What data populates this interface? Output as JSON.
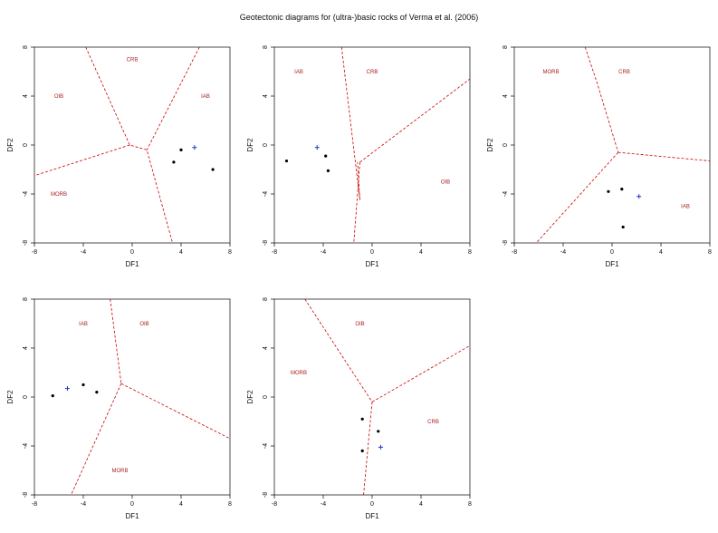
{
  "title": "Geotectonic diagrams for (ultra-)basic rocks of Verma et al. (2006)",
  "colors": {
    "boundary": "#cc0000",
    "label": "#aa2222",
    "sample": "#000000",
    "mean": "#2233cc",
    "axis": "#000000"
  },
  "chart_data": [
    {
      "type": "scatter",
      "xlabel": "DF1",
      "ylabel": "DF2",
      "xlim": [
        -8,
        8
      ],
      "ylim": [
        -8,
        8
      ],
      "xticks": [
        "-8",
        "-4",
        "0",
        "4",
        "8"
      ],
      "yticks": [
        "-8",
        "-4",
        "0",
        "4",
        "8"
      ],
      "fields": [
        {
          "name": "CRB",
          "x": 0,
          "y": 7
        },
        {
          "name": "OIB",
          "x": -6,
          "y": 4
        },
        {
          "name": "IAB",
          "x": 6,
          "y": 4
        },
        {
          "name": "MORB",
          "x": -6,
          "y": -4
        }
      ],
      "boundaries": [
        [
          [
            -3.8,
            8
          ],
          [
            -0.2,
            0
          ],
          [
            1.2,
            -0.4
          ],
          [
            3.3,
            -8
          ]
        ],
        [
          [
            5.5,
            8
          ],
          [
            1.2,
            -0.4
          ]
        ],
        [
          [
            -0.2,
            0
          ],
          [
            -8,
            -2.5
          ]
        ]
      ],
      "samples": [
        [
          4,
          -0.4
        ],
        [
          3.4,
          -1.4
        ],
        [
          6.6,
          -2
        ]
      ],
      "mean": [
        [
          5.1,
          -0.2
        ]
      ]
    },
    {
      "type": "scatter",
      "xlabel": "DF1",
      "ylabel": "DF2",
      "xlim": [
        -8,
        8
      ],
      "ylim": [
        -8,
        8
      ],
      "xticks": [
        "-8",
        "-4",
        "0",
        "4",
        "8"
      ],
      "yticks": [
        "-8",
        "-4",
        "0",
        "4",
        "8"
      ],
      "fields": [
        {
          "name": "IAB",
          "x": -6,
          "y": 6
        },
        {
          "name": "CRB",
          "x": 0,
          "y": 6
        },
        {
          "name": "OIB",
          "x": 6,
          "y": -3
        }
      ],
      "boundaries": [
        [
          [
            -2.5,
            8
          ],
          [
            -1,
            -4.5
          ],
          [
            -1.2,
            -1.4
          ]
        ],
        [
          [
            -1,
            -1.4
          ],
          [
            8,
            5.4
          ]
        ],
        [
          [
            -1,
            -1.4
          ],
          [
            -1.5,
            -8
          ]
        ]
      ],
      "samples": [
        [
          -7,
          -1.3
        ],
        [
          -3.8,
          -0.9
        ],
        [
          -3.6,
          -2.1
        ]
      ],
      "mean": [
        [
          -4.5,
          -0.2
        ]
      ]
    },
    {
      "type": "scatter",
      "xlabel": "DF1",
      "ylabel": "DF2",
      "xlim": [
        -8,
        8
      ],
      "ylim": [
        -8,
        8
      ],
      "xticks": [
        "-8",
        "-4",
        "0",
        "4",
        "8"
      ],
      "yticks": [
        "-8",
        "-4",
        "0",
        "4",
        "8"
      ],
      "fields": [
        {
          "name": "MORB",
          "x": -5,
          "y": 6
        },
        {
          "name": "CRB",
          "x": 1,
          "y": 6
        },
        {
          "name": "IAB",
          "x": 6,
          "y": -5
        }
      ],
      "boundaries": [
        [
          [
            -2.2,
            8
          ],
          [
            -1.2,
            5
          ],
          [
            0.5,
            -0.6
          ]
        ],
        [
          [
            0.5,
            -0.6
          ],
          [
            8,
            -1.3
          ]
        ],
        [
          [
            0.5,
            -0.6
          ],
          [
            -6.2,
            -8
          ]
        ]
      ],
      "samples": [
        [
          -0.3,
          -3.8
        ],
        [
          0.8,
          -3.6
        ],
        [
          0.9,
          -6.7
        ]
      ],
      "mean": [
        [
          2.2,
          -4.2
        ]
      ]
    },
    {
      "type": "scatter",
      "xlabel": "DF1",
      "ylabel": "DF2",
      "xlim": [
        -8,
        8
      ],
      "ylim": [
        -8,
        8
      ],
      "xticks": [
        "-8",
        "-4",
        "0",
        "4",
        "8"
      ],
      "yticks": [
        "-8",
        "-4",
        "0",
        "4",
        "8"
      ],
      "fields": [
        {
          "name": "IAB",
          "x": -4,
          "y": 6
        },
        {
          "name": "OIB",
          "x": 1,
          "y": 6
        },
        {
          "name": "MORB",
          "x": -1,
          "y": -6
        }
      ],
      "boundaries": [
        [
          [
            -1.8,
            8
          ],
          [
            -0.9,
            1.1
          ]
        ],
        [
          [
            -0.9,
            1.1
          ],
          [
            8,
            -3.4
          ]
        ],
        [
          [
            -0.9,
            1.1
          ],
          [
            -5,
            -8
          ]
        ]
      ],
      "samples": [
        [
          -6.5,
          0.1
        ],
        [
          -4,
          1
        ],
        [
          -2.9,
          0.4
        ]
      ],
      "mean": [
        [
          -5.3,
          0.7
        ]
      ]
    },
    {
      "type": "scatter",
      "xlabel": "DF1",
      "ylabel": "DF2",
      "xlim": [
        -8,
        8
      ],
      "ylim": [
        -8,
        8
      ],
      "xticks": [
        "-8",
        "-4",
        "0",
        "4",
        "8"
      ],
      "yticks": [
        "-8",
        "-4",
        "0",
        "4",
        "8"
      ],
      "fields": [
        {
          "name": "OIB",
          "x": -1,
          "y": 6
        },
        {
          "name": "MORB",
          "x": -6,
          "y": 2
        },
        {
          "name": "CRB",
          "x": 5,
          "y": -2
        }
      ],
      "boundaries": [
        [
          [
            -5.5,
            8
          ],
          [
            0,
            -0.4
          ]
        ],
        [
          [
            0,
            -0.4
          ],
          [
            8,
            4.2
          ]
        ],
        [
          [
            0,
            -0.4
          ],
          [
            -0.7,
            -8
          ]
        ]
      ],
      "samples": [
        [
          -0.8,
          -1.8
        ],
        [
          0.5,
          -2.8
        ],
        [
          -0.8,
          -4.4
        ]
      ],
      "mean": [
        [
          0.7,
          -4.1
        ]
      ]
    }
  ]
}
